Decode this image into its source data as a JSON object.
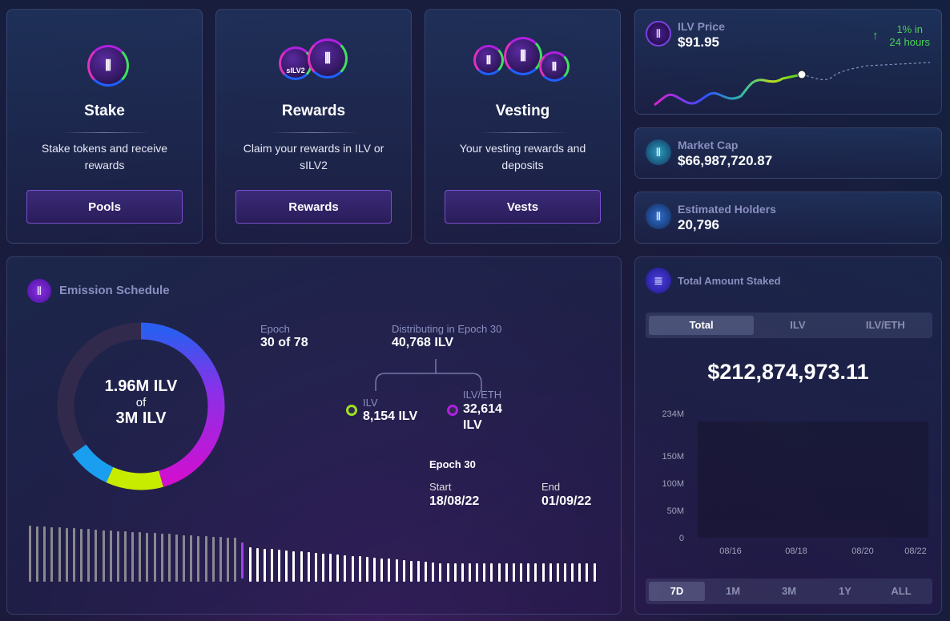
{
  "cards": [
    {
      "title": "Stake",
      "desc": "Stake tokens and receive rewards",
      "button": "Pools"
    },
    {
      "title": "Rewards",
      "desc": "Claim your rewards in ILV or sILV2",
      "button": "Rewards",
      "coin_label": "sILV2"
    },
    {
      "title": "Vesting",
      "desc": "Your vesting rewards and deposits",
      "button": "Vests"
    }
  ],
  "price": {
    "label": "ILV Price",
    "value": "$91.95",
    "change": "1% in",
    "change2": "24 hours",
    "change_color": "#4cd05a"
  },
  "market_cap": {
    "label": "Market Cap",
    "value": "$66,987,720.87"
  },
  "holders": {
    "label": "Estimated Holders",
    "value": "20,796"
  },
  "emission": {
    "title": "Emission Schedule",
    "donut_main": "1.96M ILV",
    "donut_of": "of",
    "donut_total": "3M ILV",
    "epoch_label": "Epoch",
    "epoch_value": "30 of 78",
    "dist_label": "Distributing in Epoch 30",
    "dist_value": "40,768 ILV",
    "ilv_label": "ILV",
    "ilv_value": "8,154 ILV",
    "lp_label": "ILV/ETH",
    "lp_value": "32,614",
    "lp_unit": "ILV",
    "epoch_title": "Epoch 30",
    "start_label": "Start",
    "start_value": "18/08/22",
    "end_label": "End",
    "end_value": "01/09/22",
    "current_epoch": 30,
    "total_epochs": 78,
    "distributed_fraction": 0.653
  },
  "staked": {
    "title": "Total Amount Staked",
    "tabs": [
      "Total",
      "ILV",
      "ILV/ETH"
    ],
    "active_tab": "Total",
    "value": "$212,874,973.11",
    "ranges": [
      "7D",
      "1M",
      "3M",
      "1Y",
      "ALL"
    ],
    "active_range": "7D"
  },
  "chart_data": {
    "type": "line",
    "x": [
      "08/16",
      "08/18",
      "08/20",
      "08/22"
    ],
    "yticks": [
      "234M",
      "150M",
      "100M",
      "50M",
      "0"
    ],
    "values": [
      212874973,
      212874973,
      212874973,
      212874973
    ]
  }
}
